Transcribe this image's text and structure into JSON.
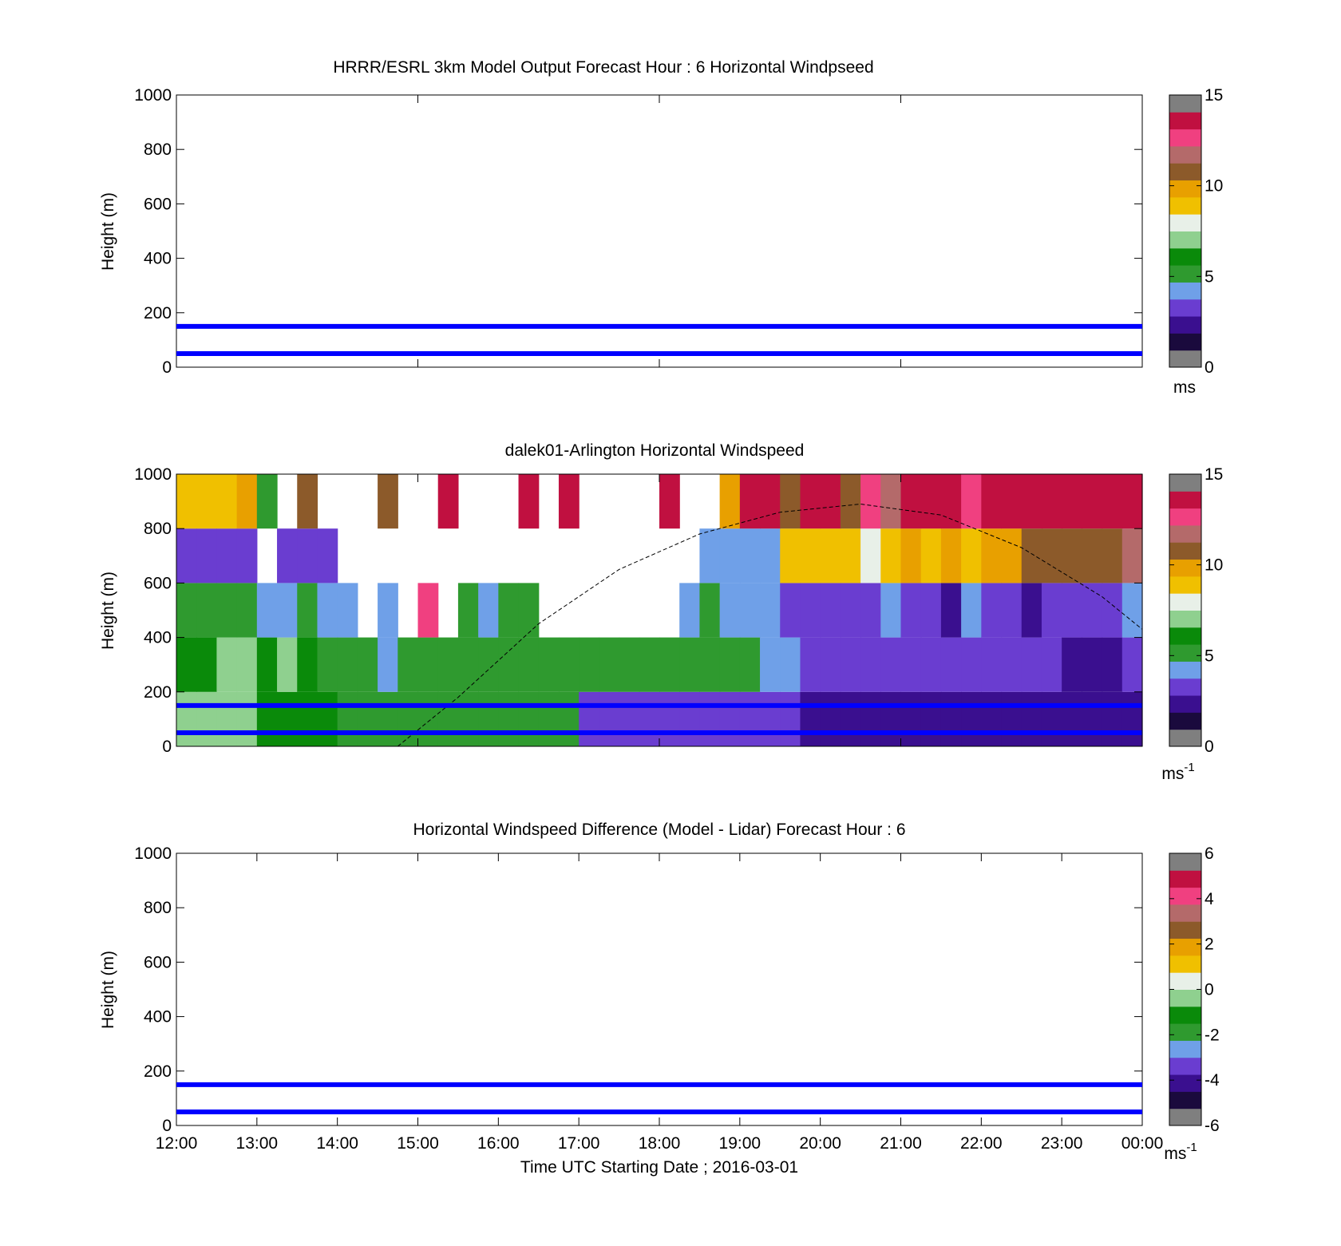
{
  "chart_data": [
    {
      "type": "heatmap",
      "title": "HRRR/ESRL 3km Model Output   Forecast Hour : 6 Horizontal Windpseed",
      "ylabel": "Height (m)",
      "xlabel": "",
      "ylim": [
        0,
        1000
      ],
      "yticks": [
        "0",
        "200",
        "400",
        "600",
        "800",
        "1000"
      ],
      "xlim": [
        "12:00",
        "00:00"
      ],
      "xticks": [
        "12:00",
        "15:00",
        "18:00",
        "21:00",
        "00:00"
      ],
      "hlines": [
        50,
        150
      ],
      "hline_color": "#0000ff",
      "colorbar": {
        "range": [
          0,
          15
        ],
        "ticks": [
          "0",
          "5",
          "10",
          "15"
        ],
        "unit": "ms"
      },
      "data_description": "empty"
    },
    {
      "type": "heatmap",
      "title": "dalek01-Arlington  Horizontal Windspeed",
      "ylabel": "Height (m)",
      "xlabel": "",
      "ylim": [
        0,
        1000
      ],
      "yticks": [
        "0",
        "200",
        "400",
        "600",
        "800",
        "1000"
      ],
      "xlim": [
        "12:00",
        "00:00"
      ],
      "xticks": [
        "12:00",
        "15:00",
        "18:00",
        "21:00",
        "00:00"
      ],
      "hlines": [
        50,
        150
      ],
      "hline_color": "#0000ff",
      "colorbar": {
        "range": [
          0,
          15
        ],
        "ticks": [
          "0",
          "5",
          "10",
          "15"
        ],
        "unit": "ms",
        "unit_exp": "-1"
      },
      "boundary_curve": {
        "style": "dashed",
        "x": [
          "14:45",
          "15:30",
          "16:30",
          "17:30",
          "18:30",
          "19:30",
          "20:30",
          "21:30",
          "22:30",
          "23:30",
          "00:00"
        ],
        "y": [
          0,
          180,
          450,
          650,
          780,
          860,
          890,
          850,
          730,
          550,
          430
        ]
      },
      "columns": {
        "start": "12:00",
        "step_minutes": 15,
        "note": "dominant windspeed (m/s) per column: [bottom 0-200, 200-400, 400-600, 600-800, 800-1000]; null = no data",
        "values": [
          [
            6.5,
            6,
            4.5,
            2.5,
            9.5
          ],
          [
            6.5,
            6,
            4.5,
            2,
            9.5
          ],
          [
            6.5,
            6.5,
            5,
            2,
            9.5
          ],
          [
            6.5,
            6.5,
            4.5,
            2.5,
            10
          ],
          [
            5.5,
            6,
            3.5,
            null,
            5
          ],
          [
            5.5,
            6.5,
            3,
            2,
            null
          ],
          [
            5.5,
            5.5,
            5,
            2.5,
            11
          ],
          [
            5.5,
            5,
            3,
            2.5,
            null
          ],
          [
            5,
            5,
            4,
            null,
            null
          ],
          [
            5,
            5,
            null,
            null,
            null
          ],
          [
            5,
            3.5,
            4,
            null,
            12
          ],
          [
            5,
            5,
            null,
            null,
            null
          ],
          [
            5,
            5,
            14,
            null,
            null
          ],
          [
            5,
            5,
            null,
            null,
            15
          ],
          [
            5,
            5,
            5,
            null,
            null
          ],
          [
            4.5,
            5,
            3.5,
            null,
            null
          ],
          [
            4.5,
            5,
            5,
            null,
            null
          ],
          [
            4.5,
            5,
            5,
            null,
            15
          ],
          [
            4.5,
            5,
            null,
            null,
            null
          ],
          [
            4.5,
            5,
            null,
            null,
            15
          ],
          [
            2.5,
            5,
            null,
            null,
            null
          ],
          [
            2.5,
            5,
            null,
            null,
            null
          ],
          [
            2.5,
            5,
            null,
            null,
            null
          ],
          [
            2.5,
            5,
            null,
            null,
            null
          ],
          [
            2.5,
            5,
            null,
            null,
            15
          ],
          [
            2.5,
            5,
            4,
            null,
            null
          ],
          [
            2.5,
            5,
            4.5,
            3,
            null
          ],
          [
            2.5,
            5,
            3,
            4,
            10
          ],
          [
            2,
            5,
            3,
            3,
            15
          ],
          [
            2,
            3.5,
            3.5,
            4,
            15
          ],
          [
            2,
            3.5,
            2.5,
            9,
            11
          ],
          [
            1.5,
            2.5,
            2.5,
            9,
            15
          ],
          [
            1.5,
            2,
            2,
            9,
            15
          ],
          [
            1.5,
            2,
            2.5,
            9,
            12
          ],
          [
            1.5,
            2,
            2,
            8,
            14
          ],
          [
            1.5,
            2,
            3,
            9,
            13
          ],
          [
            1.5,
            2,
            2.5,
            10,
            15
          ],
          [
            1.5,
            2,
            2,
            9,
            15
          ],
          [
            1.5,
            2.5,
            1.5,
            10,
            15
          ],
          [
            1.5,
            2,
            3,
            9,
            14
          ],
          [
            1,
            2,
            2,
            10,
            15
          ],
          [
            1,
            2,
            2,
            10,
            15
          ],
          [
            1,
            2,
            1.5,
            11,
            15
          ],
          [
            1,
            2.5,
            2,
            11,
            15
          ],
          [
            1,
            1.5,
            2,
            11,
            15
          ],
          [
            1,
            1.5,
            2,
            11,
            15
          ],
          [
            1,
            1.5,
            2,
            12,
            15
          ],
          [
            1,
            2,
            3,
            13,
            15
          ]
        ]
      }
    },
    {
      "type": "heatmap",
      "title": "Horizontal Windspeed Difference (Model - Lidar) Forecast Hour : 6",
      "ylabel": "Height (m)",
      "xlabel": "Time UTC  Starting Date ; 2016-03-01",
      "ylim": [
        0,
        1000
      ],
      "yticks": [
        "0",
        "200",
        "400",
        "600",
        "800",
        "1000"
      ],
      "xlim": [
        "12:00",
        "00:00"
      ],
      "xticks": [
        "12:00",
        "13:00",
        "14:00",
        "15:00",
        "16:00",
        "17:00",
        "18:00",
        "19:00",
        "20:00",
        "21:00",
        "22:00",
        "23:00",
        "00:00"
      ],
      "hlines": [
        50,
        150
      ],
      "hline_color": "#0000ff",
      "colorbar": {
        "range": [
          -6,
          6
        ],
        "ticks": [
          "-6",
          "-4",
          "-2",
          "0",
          "2",
          "4",
          "6"
        ],
        "unit": "ms",
        "unit_exp": "-1"
      },
      "data_description": "empty"
    }
  ],
  "colormap": [
    "#7f7f7f",
    "#1a0a3d",
    "#3a0f8f",
    "#6a3dd0",
    "#6fa0e8",
    "#2f9a2f",
    "#0a8a0a",
    "#8fd08f",
    "#e8f0e8",
    "#f0c000",
    "#e8a000",
    "#8c5a2a",
    "#b46a6a",
    "#f04080",
    "#c01040",
    "#7f7f7f"
  ]
}
